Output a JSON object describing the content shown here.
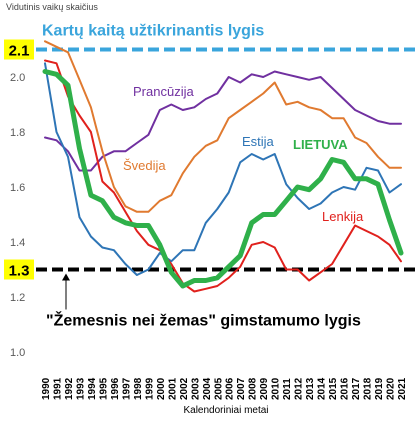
{
  "chart_data": {
    "type": "line",
    "ylabel": "Vidutinis vaikų skaičius",
    "xlabel": "Kalendoriniai metai",
    "ylim": [
      1.0,
      2.2
    ],
    "yticks": [
      "1.0",
      "1.2",
      "1.4",
      "1.6",
      "1.8",
      "2.0"
    ],
    "x": [
      "1990",
      "1991",
      "1992",
      "1993",
      "1994",
      "1995",
      "1996",
      "1997",
      "1998",
      "1999",
      "2000",
      "2001",
      "2002",
      "2003",
      "2004",
      "2005",
      "2006",
      "2007",
      "2008",
      "2009",
      "2010",
      "2011",
      "2012",
      "2013",
      "2014",
      "2015",
      "2016",
      "2017",
      "2018",
      "2019",
      "2020",
      "2021"
    ],
    "series": [
      {
        "name": "Prancūzija",
        "color": "#7030a0",
        "width": 2,
        "values": [
          1.78,
          1.77,
          1.73,
          1.66,
          1.66,
          1.71,
          1.73,
          1.73,
          1.76,
          1.79,
          1.88,
          1.9,
          1.88,
          1.89,
          1.92,
          1.94,
          2.0,
          1.98,
          2.01,
          2.0,
          2.02,
          2.01,
          2.0,
          1.99,
          2.0,
          1.96,
          1.92,
          1.88,
          1.86,
          1.84,
          1.83,
          1.83
        ]
      },
      {
        "name": "Švedija",
        "color": "#e07a30",
        "width": 2,
        "values": [
          2.13,
          2.11,
          2.09,
          1.99,
          1.89,
          1.73,
          1.6,
          1.53,
          1.51,
          1.51,
          1.55,
          1.57,
          1.65,
          1.71,
          1.75,
          1.77,
          1.85,
          1.88,
          1.91,
          1.94,
          1.98,
          1.9,
          1.91,
          1.89,
          1.88,
          1.85,
          1.85,
          1.78,
          1.76,
          1.71,
          1.67,
          1.67
        ]
      },
      {
        "name": "Estija",
        "color": "#2e75b6",
        "width": 2,
        "values": [
          2.05,
          1.8,
          1.71,
          1.49,
          1.42,
          1.38,
          1.37,
          1.32,
          1.28,
          1.3,
          1.36,
          1.33,
          1.37,
          1.37,
          1.47,
          1.52,
          1.58,
          1.69,
          1.72,
          1.7,
          1.72,
          1.61,
          1.56,
          1.52,
          1.54,
          1.58,
          1.6,
          1.59,
          1.67,
          1.66,
          1.58,
          1.61
        ]
      },
      {
        "name": "LIETUVA",
        "color": "#2fb04a",
        "width": 5,
        "values": [
          2.02,
          2.01,
          1.97,
          1.74,
          1.57,
          1.55,
          1.49,
          1.47,
          1.46,
          1.46,
          1.39,
          1.29,
          1.24,
          1.26,
          1.26,
          1.27,
          1.31,
          1.35,
          1.47,
          1.5,
          1.5,
          1.55,
          1.6,
          1.59,
          1.63,
          1.7,
          1.69,
          1.63,
          1.63,
          1.61,
          1.48,
          1.36
        ]
      },
      {
        "name": "Lenkija",
        "color": "#e0211d",
        "width": 2,
        "values": [
          2.06,
          2.05,
          1.93,
          1.86,
          1.8,
          1.62,
          1.58,
          1.51,
          1.44,
          1.39,
          1.37,
          1.32,
          1.25,
          1.22,
          1.23,
          1.24,
          1.27,
          1.31,
          1.39,
          1.4,
          1.38,
          1.3,
          1.3,
          1.26,
          1.29,
          1.32,
          1.39,
          1.46,
          1.44,
          1.42,
          1.39,
          1.33
        ]
      }
    ],
    "reference_lines": [
      {
        "value": 2.1,
        "label": "Kartų kaitą užtikrinantis lygis",
        "box": "2.1",
        "color": "#3aa5dc"
      },
      {
        "value": 1.3,
        "label": "\"Žemesnis nei žemas\" gimstamumo lygis",
        "box": "1.3",
        "color": "#000000"
      }
    ],
    "grid": false,
    "legend": "inline labels"
  }
}
